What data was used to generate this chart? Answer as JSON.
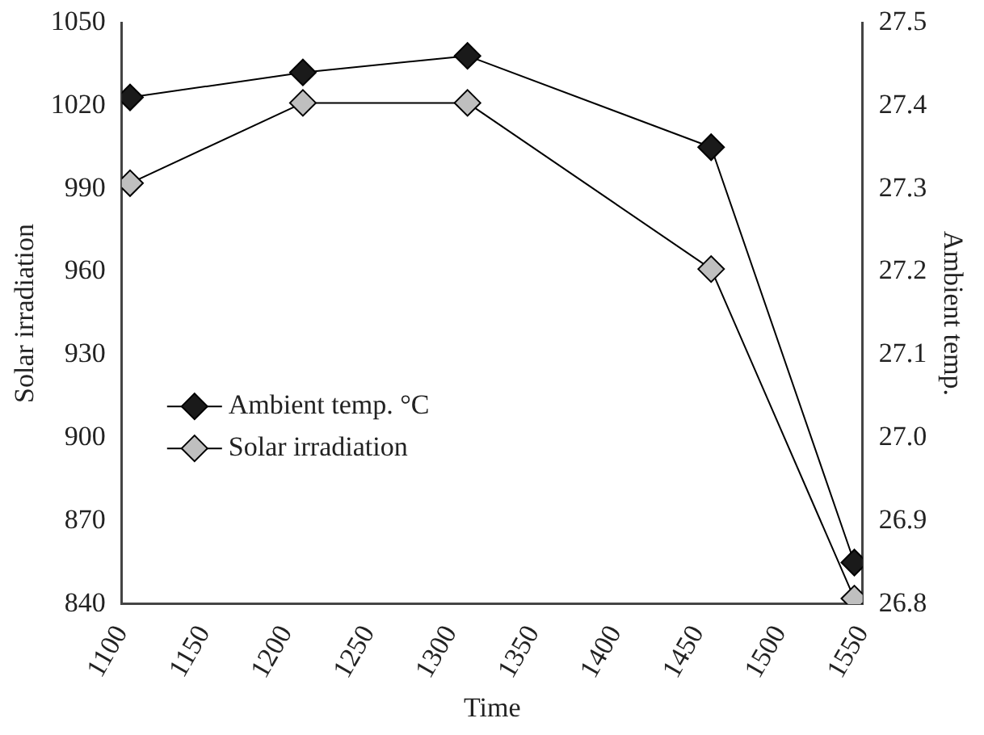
{
  "chart_data": {
    "type": "line",
    "xlabel": "Time",
    "ylabel": "Solar irradiation",
    "y2label": "Ambient temp.",
    "x": [
      1105,
      1210,
      1310,
      1458,
      1545
    ],
    "series": [
      {
        "name": "Ambient temp. °C",
        "color": "#1a1a1a",
        "axis": "y2",
        "values": [
          27.41,
          27.44,
          27.46,
          27.35,
          26.85
        ]
      },
      {
        "name": "Solar irradiation",
        "color": "#bfbfbf",
        "values": [
          992,
          1021,
          1021,
          961,
          842
        ]
      }
    ],
    "xlim": [
      1100,
      1550
    ],
    "xticks": [
      1100,
      1150,
      1200,
      1250,
      1300,
      1350,
      1400,
      1450,
      1500,
      1550
    ],
    "ylim": [
      840,
      1050
    ],
    "yticks": [
      840,
      870,
      900,
      930,
      960,
      990,
      1020,
      1050
    ],
    "y2lim": [
      26.8,
      27.5
    ],
    "y2ticks": [
      {
        "value": 26.8,
        "label": "26.8"
      },
      {
        "value": 26.9,
        "label": "26.9"
      },
      {
        "value": 27.0,
        "label": "27.0"
      },
      {
        "value": 27.1,
        "label": "27.1"
      },
      {
        "value": 27.2,
        "label": "27.2"
      },
      {
        "value": 27.3,
        "label": "27.3"
      },
      {
        "value": 27.4,
        "label": "27.4"
      },
      {
        "value": 27.5,
        "label": "27.5"
      }
    ],
    "grid": false,
    "legend": "center left",
    "marker": "diamond",
    "line_style": "solid"
  }
}
